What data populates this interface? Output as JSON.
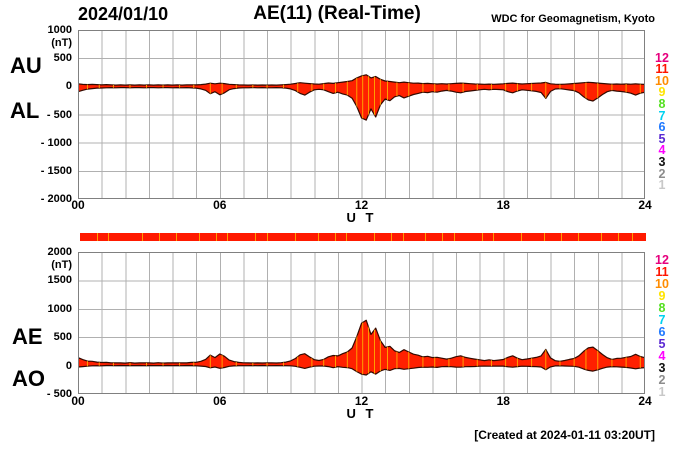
{
  "header": {
    "date": "2024/01/10",
    "title": "AE(11) (Real-Time)",
    "source": "WDC for Geomagnetism, Kyoto"
  },
  "footer": {
    "created": "[Created at 2024-01-11 03:20UT]"
  },
  "colors": {
    "area_fill": "#ff2000",
    "area_outline": "#330a00",
    "grid": "#b0b0b0",
    "border": "#808080",
    "stripe": "#ffa000",
    "bar": "#ff1a00",
    "bar_stripe": "#ff9d00"
  },
  "station_numbers": [
    {
      "label": "12",
      "color": "#e6007e"
    },
    {
      "label": "11",
      "color": "#ff1400"
    },
    {
      "label": "10",
      "color": "#ff8c00"
    },
    {
      "label": "9",
      "color": "#ffe400"
    },
    {
      "label": "8",
      "color": "#55e022"
    },
    {
      "label": "7",
      "color": "#00d2f0"
    },
    {
      "label": "6",
      "color": "#1e78ff"
    },
    {
      "label": "5",
      "color": "#5a28d2"
    },
    {
      "label": "4",
      "color": "#ff00ff"
    },
    {
      "label": "3",
      "color": "#111111"
    },
    {
      "label": "2",
      "color": "#8c8c8c"
    },
    {
      "label": "1",
      "color": "#c8c8c8"
    }
  ],
  "activity_bar": {
    "stripe_positions": [
      0.03,
      0.05,
      0.11,
      0.14,
      0.17,
      0.21,
      0.24,
      0.26,
      0.31,
      0.33,
      0.38,
      0.42,
      0.45,
      0.47,
      0.52,
      0.55,
      0.57,
      0.61,
      0.64,
      0.66,
      0.71,
      0.73,
      0.78,
      0.82,
      0.85,
      0.88,
      0.92,
      0.95,
      0.975
    ]
  },
  "chart_data": [
    {
      "type": "area",
      "name": "au-al-chart",
      "title": "AU / AL auroral electrojet indices",
      "left_labels": [
        "AU",
        "AL"
      ],
      "ylabel_unit": "(nT)",
      "ylim": [
        -2000,
        1000
      ],
      "yticks": [
        "1000",
        "500",
        "0",
        "- 500",
        "- 1000",
        "- 1500",
        "- 2000"
      ],
      "ytick_values": [
        1000,
        500,
        0,
        -500,
        -1000,
        -1500,
        -2000
      ],
      "xlabel": "U T",
      "xlim": [
        0,
        24
      ],
      "xticks": [
        "00",
        "06",
        "12",
        "18",
        "24"
      ],
      "xtick_values": [
        0,
        6,
        12,
        18,
        24
      ],
      "grid": true,
      "t_start": 0,
      "t_step": 0.2,
      "stripe_hours": [
        0.4,
        0.9,
        1.5,
        2.2,
        2.9,
        3.6,
        4.3,
        4.9,
        5.6,
        6.1,
        6.7,
        7.4,
        8.0,
        8.7,
        9.3,
        9.9,
        10.4,
        10.9,
        11.4,
        11.8,
        12.05,
        12.3,
        12.55,
        12.8,
        13.1,
        13.5,
        14.0,
        14.6,
        15.1,
        15.7,
        16.3,
        16.9,
        17.5,
        18.1,
        18.6,
        19.2,
        19.8,
        20.4,
        21.0,
        21.5,
        22.0,
        22.6,
        23.2,
        23.8
      ],
      "series": [
        {
          "name": "AU",
          "values": [
            45,
            35,
            30,
            35,
            30,
            25,
            30,
            25,
            22,
            26,
            22,
            26,
            22,
            25,
            22,
            25,
            22,
            25,
            22,
            25,
            22,
            25,
            22,
            25,
            28,
            26,
            30,
            40,
            55,
            45,
            55,
            48,
            36,
            30,
            26,
            24,
            22,
            24,
            22,
            24,
            22,
            24,
            22,
            25,
            30,
            38,
            50,
            65,
            55,
            48,
            42,
            38,
            48,
            60,
            52,
            65,
            75,
            85,
            100,
            150,
            185,
            205,
            150,
            175,
            125,
            95,
            85,
            75,
            65,
            75,
            65,
            55,
            58,
            48,
            52,
            46,
            42,
            46,
            42,
            46,
            52,
            58,
            52,
            46,
            42,
            40,
            36,
            40,
            36,
            40,
            45,
            52,
            58,
            48,
            42,
            46,
            50,
            55,
            60,
            70,
            45,
            38,
            34,
            38,
            44,
            50,
            58,
            65,
            72,
            66,
            58,
            50,
            44,
            38,
            42,
            38,
            42,
            38,
            44,
            38,
            34
          ]
        },
        {
          "name": "AL",
          "values": [
            -95,
            -70,
            -50,
            -40,
            -32,
            -30,
            -26,
            -22,
            -26,
            -22,
            -22,
            -26,
            -22,
            -22,
            -26,
            -22,
            -22,
            -26,
            -22,
            -22,
            -26,
            -22,
            -26,
            -22,
            -28,
            -32,
            -45,
            -70,
            -130,
            -95,
            -150,
            -115,
            -60,
            -40,
            -30,
            -26,
            -26,
            -22,
            -26,
            -22,
            -26,
            -26,
            -22,
            -26,
            -32,
            -45,
            -75,
            -125,
            -155,
            -105,
            -62,
            -52,
            -62,
            -95,
            -125,
            -105,
            -135,
            -155,
            -210,
            -360,
            -560,
            -600,
            -400,
            -545,
            -330,
            -225,
            -255,
            -185,
            -165,
            -205,
            -175,
            -145,
            -125,
            -105,
            -112,
            -95,
            -105,
            -85,
            -72,
            -85,
            -105,
            -115,
            -92,
            -82,
            -72,
            -62,
            -52,
            -62,
            -52,
            -56,
            -62,
            -95,
            -115,
            -82,
            -62,
            -70,
            -80,
            -90,
            -110,
            -215,
            -90,
            -48,
            -42,
            -52,
            -65,
            -75,
            -115,
            -185,
            -240,
            -260,
            -205,
            -145,
            -95,
            -72,
            -85,
            -92,
            -105,
            -122,
            -155,
            -122,
            -105
          ]
        }
      ]
    },
    {
      "type": "area",
      "name": "ae-ao-chart",
      "title": "AE / AO auroral electrojet indices",
      "left_labels": [
        "AE",
        "AO"
      ],
      "ylabel_unit": "(nT)",
      "ylim": [
        -500,
        2000
      ],
      "yticks": [
        "2000",
        "1500",
        "1000",
        "500",
        "0",
        "- 500"
      ],
      "ytick_values": [
        2000,
        1500,
        1000,
        500,
        0,
        -500
      ],
      "xlabel": "U T",
      "xlim": [
        0,
        24
      ],
      "xticks": [
        "00",
        "06",
        "12",
        "18",
        "24"
      ],
      "xtick_values": [
        0,
        6,
        12,
        18,
        24
      ],
      "grid": true,
      "t_start": 0,
      "t_step": 0.2,
      "stripe_hours": [
        0.4,
        0.9,
        1.5,
        2.2,
        2.9,
        3.6,
        4.3,
        4.9,
        5.6,
        6.1,
        6.7,
        7.4,
        8.0,
        8.7,
        9.3,
        9.9,
        10.4,
        10.9,
        11.4,
        11.8,
        12.05,
        12.3,
        12.55,
        12.8,
        13.1,
        13.5,
        14.0,
        14.6,
        15.1,
        15.7,
        16.3,
        16.9,
        17.5,
        18.1,
        18.6,
        19.2,
        19.8,
        20.4,
        21.0,
        21.5,
        22.0,
        22.6,
        23.2,
        23.8
      ],
      "series": [
        {
          "name": "AE",
          "values": [
            140,
            105,
            80,
            75,
            62,
            55,
            56,
            47,
            48,
            48,
            44,
            52,
            44,
            47,
            48,
            47,
            44,
            51,
            44,
            47,
            48,
            47,
            48,
            47,
            56,
            58,
            75,
            110,
            185,
            140,
            205,
            163,
            96,
            70,
            56,
            50,
            48,
            46,
            48,
            46,
            48,
            50,
            46,
            51,
            62,
            83,
            125,
            190,
            210,
            153,
            104,
            90,
            110,
            155,
            177,
            170,
            210,
            240,
            310,
            510,
            745,
            800,
            550,
            660,
            440,
            320,
            340,
            260,
            230,
            280,
            240,
            200,
            183,
            153,
            164,
            141,
            147,
            131,
            114,
            131,
            157,
            173,
            144,
            128,
            114,
            102,
            88,
            102,
            88,
            96,
            107,
            147,
            173,
            130,
            104,
            116,
            130,
            145,
            170,
            285,
            135,
            86,
            76,
            90,
            109,
            125,
            173,
            250,
            312,
            326,
            263,
            195,
            139,
            110,
            127,
            130,
            147,
            160,
            199,
            160,
            139
          ]
        },
        {
          "name": "AO",
          "values": [
            -25,
            -18,
            -10,
            -3,
            -1,
            -3,
            2,
            2,
            -2,
            2,
            0,
            0,
            0,
            2,
            -2,
            2,
            0,
            0,
            0,
            2,
            -2,
            2,
            -2,
            2,
            0,
            -3,
            -8,
            -15,
            -38,
            -25,
            -48,
            -34,
            -12,
            -5,
            -2,
            -1,
            -2,
            1,
            -2,
            1,
            -2,
            -1,
            0,
            -1,
            -1,
            -4,
            -13,
            -30,
            -50,
            -29,
            -10,
            -7,
            -7,
            -18,
            -37,
            -20,
            -30,
            -35,
            -55,
            -105,
            -150,
            -165,
            -110,
            -150,
            -95,
            -65,
            -85,
            -55,
            -50,
            -65,
            -55,
            -45,
            -34,
            -29,
            -30,
            -25,
            -32,
            -20,
            -15,
            -20,
            -27,
            -29,
            -20,
            -18,
            -15,
            -11,
            -8,
            -11,
            -8,
            -8,
            -9,
            -22,
            -29,
            -17,
            -10,
            -12,
            -15,
            -18,
            -25,
            -73,
            -23,
            -5,
            -4,
            -7,
            -11,
            -13,
            -29,
            -60,
            -84,
            -97,
            -74,
            -48,
            -26,
            -17,
            -22,
            -27,
            -32,
            -42,
            -56,
            -42,
            -36
          ]
        }
      ]
    }
  ]
}
